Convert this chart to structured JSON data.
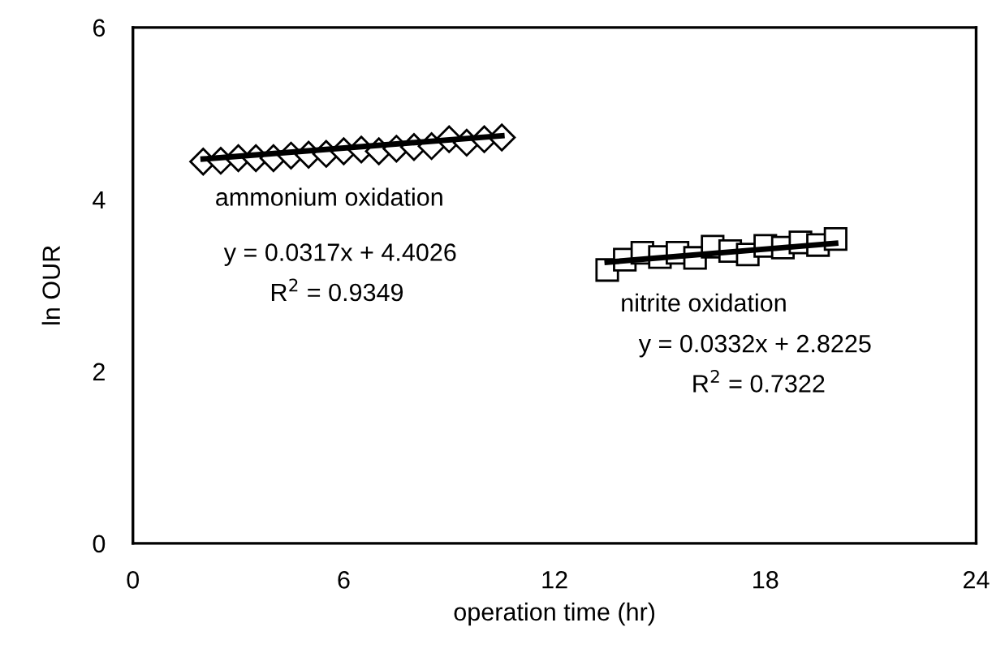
{
  "chart_data": {
    "type": "scatter",
    "xlabel": "operation time (hr)",
    "ylabel": "ln OUR",
    "xlim": [
      0,
      24
    ],
    "xticks": [
      0,
      6,
      12,
      18,
      24
    ],
    "ylim": [
      0,
      6
    ],
    "yticks": [
      0,
      2,
      4,
      6
    ],
    "grid": false,
    "series": [
      {
        "marker": "diamond",
        "color": "#000000",
        "x": [
          2.0,
          2.5,
          3.0,
          3.5,
          4.0,
          4.5,
          5.0,
          5.5,
          6.0,
          6.5,
          7.0,
          7.5,
          8.0,
          8.5,
          9.0,
          9.5,
          10.0,
          10.5
        ],
        "values": [
          4.44,
          4.45,
          4.48,
          4.48,
          4.48,
          4.51,
          4.52,
          4.53,
          4.56,
          4.58,
          4.56,
          4.59,
          4.61,
          4.62,
          4.7,
          4.66,
          4.7,
          4.72
        ]
      },
      {
        "marker": "square",
        "color": "#000000",
        "x": [
          13.5,
          14.0,
          14.5,
          15.0,
          15.5,
          16.0,
          16.5,
          17.0,
          17.5,
          18.0,
          18.5,
          19.0,
          19.5,
          20.0
        ],
        "values": [
          3.18,
          3.3,
          3.38,
          3.33,
          3.38,
          3.32,
          3.45,
          3.4,
          3.36,
          3.46,
          3.44,
          3.5,
          3.47,
          3.54
        ]
      },
      {
        "type": "line",
        "marker": "none",
        "color": "#000000",
        "x": [
          2.0,
          10.5
        ],
        "values": [
          4.47,
          4.74
        ]
      },
      {
        "type": "line",
        "marker": "none",
        "color": "#000000",
        "x": [
          13.5,
          20.0
        ],
        "values": [
          3.27,
          3.49
        ]
      }
    ],
    "annotations": [
      "ammonium oxidation",
      "y = 0.0317x + 4.4026",
      "R$^{2}$ = 0.9349",
      "nitrite oxidation",
      "y = 0.0332x + 2.8225",
      "R$^{2}$ = 0.7322"
    ]
  }
}
